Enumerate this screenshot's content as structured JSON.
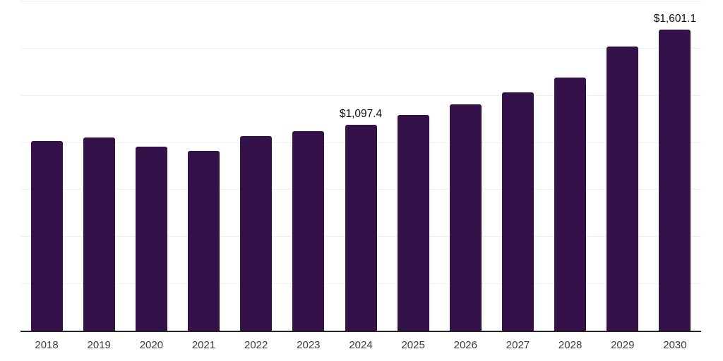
{
  "chart_data": {
    "type": "bar",
    "title": "",
    "xlabel": "",
    "ylabel": "",
    "categories": [
      "2018",
      "2019",
      "2020",
      "2021",
      "2022",
      "2023",
      "2024",
      "2025",
      "2026",
      "2027",
      "2028",
      "2029",
      "2030"
    ],
    "values": [
      1010,
      1028,
      980,
      957,
      1035,
      1061,
      1097.4,
      1147,
      1203,
      1266,
      1345,
      1512,
      1601.1
    ],
    "data_labels": {
      "2024": "$1,097.4",
      "2030": "$1,601.1"
    },
    "ylim": [
      0,
      1750
    ],
    "gridline_interval": 250,
    "grid": "horizontal-only",
    "legend_position": "none",
    "y_tick_labels_visible": false,
    "colors": {
      "bar": "#35114A",
      "gridline": "#efefef",
      "axis_line": "#262626",
      "tick_label": "#3c3c3c",
      "data_label": "#111111",
      "background": "#ffffff"
    }
  }
}
